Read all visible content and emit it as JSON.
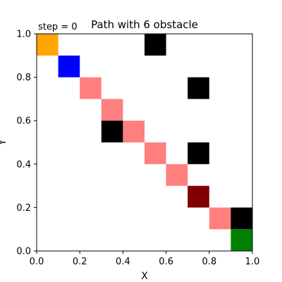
{
  "chart_data": {
    "type": "grid-path",
    "title": "Path with 6 obstacle",
    "annotation": "step = 0",
    "xlabel": "X",
    "ylabel": "Y",
    "xlim": [
      0,
      1
    ],
    "ylim": [
      0,
      1
    ],
    "x_ticks": [
      "0.0",
      "0.2",
      "0.4",
      "0.6",
      "0.8",
      "1.0"
    ],
    "y_ticks": [
      "0.0",
      "0.2",
      "0.4",
      "0.6",
      "0.8",
      "1.0"
    ],
    "grid": false,
    "cell_size": 0.1,
    "colors": {
      "start": "#ffa500",
      "agent": "#0000ff",
      "path": "#ff7f7f",
      "obstacle": "#000000",
      "obstacle_on_path": "#800000",
      "goal": "#008000"
    },
    "cells": [
      {
        "kind": "start",
        "x": 0.0,
        "y": 0.9
      },
      {
        "kind": "agent",
        "x": 0.1,
        "y": 0.8
      },
      {
        "kind": "path",
        "x": 0.2,
        "y": 0.7
      },
      {
        "kind": "path",
        "x": 0.3,
        "y": 0.6
      },
      {
        "kind": "obstacle",
        "x": 0.3,
        "y": 0.5
      },
      {
        "kind": "path",
        "x": 0.4,
        "y": 0.5
      },
      {
        "kind": "path",
        "x": 0.5,
        "y": 0.4
      },
      {
        "kind": "path",
        "x": 0.6,
        "y": 0.3
      },
      {
        "kind": "obstacle_on_path",
        "x": 0.7,
        "y": 0.2
      },
      {
        "kind": "path",
        "x": 0.8,
        "y": 0.1
      },
      {
        "kind": "obstacle",
        "x": 0.5,
        "y": 0.9
      },
      {
        "kind": "obstacle",
        "x": 0.7,
        "y": 0.7
      },
      {
        "kind": "obstacle",
        "x": 0.7,
        "y": 0.4
      },
      {
        "kind": "obstacle",
        "x": 0.9,
        "y": 0.1
      },
      {
        "kind": "goal",
        "x": 0.9,
        "y": 0.0
      }
    ]
  }
}
